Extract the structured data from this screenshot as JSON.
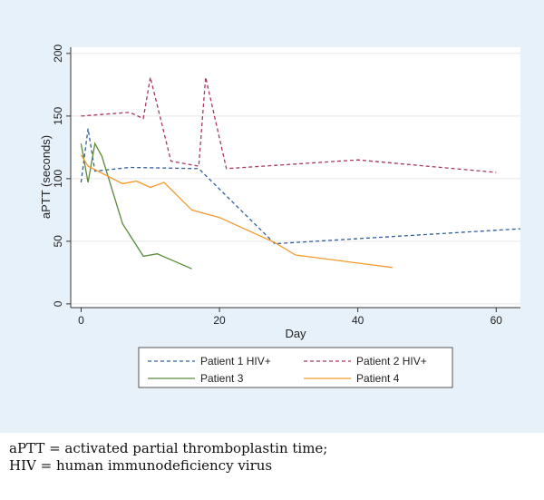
{
  "caption": {
    "line1": "aPTT = activated partial thromboplastin time;",
    "line2": "HIV = human immunodeficiency virus"
  },
  "chart_data": {
    "type": "line",
    "title": "",
    "xlabel": "Day",
    "ylabel": "aPTT (seconds)",
    "xlim": [
      -1.5,
      63.5
    ],
    "ylim": [
      -3,
      205
    ],
    "xticks": [
      0,
      20,
      40,
      60
    ],
    "yticks": [
      0,
      50,
      100,
      150,
      200
    ],
    "grid": "horizontal",
    "legend_position": "bottom",
    "series": [
      {
        "name": "Patient 1 HIV+",
        "color": "#2f5f9e",
        "dash": "dashed",
        "points": [
          [
            0,
            97
          ],
          [
            1,
            140
          ],
          [
            2,
            106
          ],
          [
            7,
            109
          ],
          [
            17,
            108
          ],
          [
            28,
            48
          ],
          [
            63.5,
            60
          ]
        ]
      },
      {
        "name": "Patient 2 HIV+",
        "color": "#a8385c",
        "dash": "dashed",
        "points": [
          [
            0,
            150
          ],
          [
            7,
            153
          ],
          [
            9,
            148
          ],
          [
            10,
            181
          ],
          [
            13,
            114
          ],
          [
            17,
            110
          ],
          [
            18,
            181
          ],
          [
            21,
            108
          ],
          [
            40,
            115
          ],
          [
            60,
            105
          ]
        ]
      },
      {
        "name": "Patient 3",
        "color": "#5a8a3a",
        "dash": "solid",
        "points": [
          [
            0,
            128
          ],
          [
            1,
            97
          ],
          [
            2,
            128
          ],
          [
            3,
            118
          ],
          [
            6,
            64
          ],
          [
            9,
            38
          ],
          [
            11,
            40
          ],
          [
            16,
            28
          ]
        ]
      },
      {
        "name": "Patient 4",
        "color": "#f29a2e",
        "dash": "solid",
        "points": [
          [
            0,
            119
          ],
          [
            1,
            110
          ],
          [
            6,
            96
          ],
          [
            8,
            98
          ],
          [
            10,
            93
          ],
          [
            12,
            97
          ],
          [
            16,
            75
          ],
          [
            20,
            69
          ],
          [
            28,
            49
          ],
          [
            31,
            39
          ],
          [
            45,
            29
          ]
        ]
      }
    ]
  }
}
